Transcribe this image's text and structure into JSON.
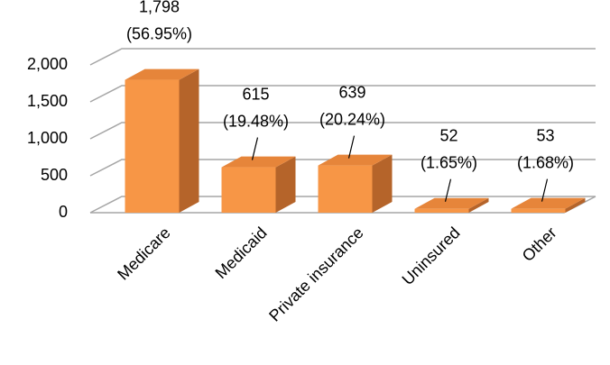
{
  "chart_data": {
    "type": "bar3d",
    "categories": [
      "Medicare",
      "Medicaid",
      "Private insurance",
      "Uninsured",
      "Other"
    ],
    "values": [
      1798,
      615,
      639,
      52,
      53
    ],
    "value_labels": [
      "1,798",
      "615",
      "639",
      "52",
      "53"
    ],
    "percent_labels": [
      "(56.95%)",
      "(19.48%)",
      "(20.24%)",
      "(1.65%)",
      "(1.68%)"
    ],
    "color": "#f79646",
    "ylim": [
      0,
      2000
    ],
    "yticks": [
      0,
      500,
      {
        "value": 1000,
        "label": "1,000"
      },
      {
        "value": 1500,
        "label": "1,500"
      },
      {
        "value": 2000,
        "label": "2,000"
      }
    ],
    "grid": true
  }
}
